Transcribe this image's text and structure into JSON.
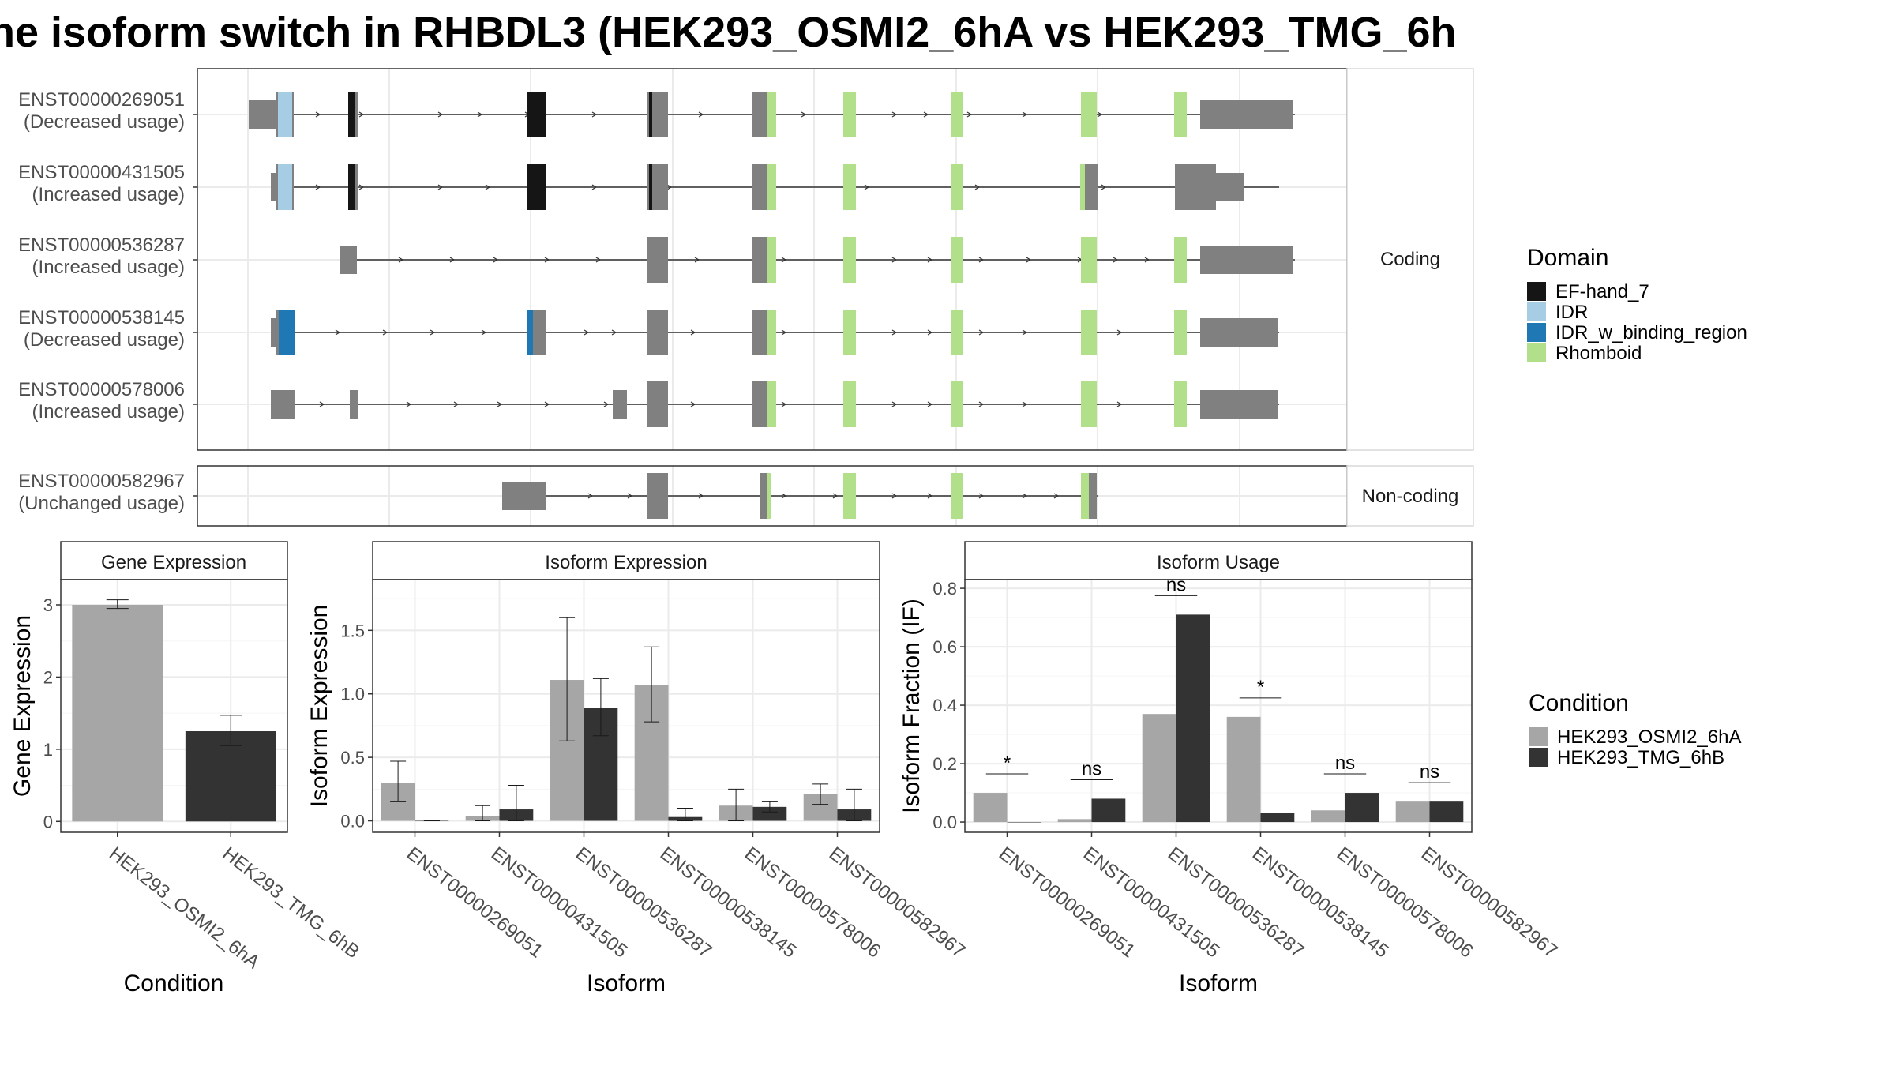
{
  "title": "ne isoform switch in RHBDL3 (HEK293_OSMI2_6hA vs HEK293_TMG_6h",
  "colors": {
    "ef_hand": "#151515",
    "idr": "#a6cde4",
    "idr_binding": "#1f77b4",
    "rhomboid": "#b2df8a",
    "exon": "#808080",
    "cond_a": "#a6a6a6",
    "cond_b": "#333333"
  },
  "gene_structure": {
    "coding_label": "Coding",
    "noncoding_label": "Non-coding",
    "transcripts": [
      {
        "id": "ENST00000269051",
        "usage": "(Decreased usage)",
        "group": "coding"
      },
      {
        "id": "ENST00000431505",
        "usage": "(Increased usage)",
        "group": "coding"
      },
      {
        "id": "ENST00000536287",
        "usage": "(Increased usage)",
        "group": "coding"
      },
      {
        "id": "ENST00000538145",
        "usage": "(Decreased usage)",
        "group": "coding"
      },
      {
        "id": "ENST00000578006",
        "usage": "(Increased usage)",
        "group": "coding"
      },
      {
        "id": "ENST00000582967",
        "usage": "(Unchanged usage)",
        "group": "noncoding"
      }
    ]
  },
  "legend_domain": {
    "title": "Domain",
    "items": [
      "EF-hand_7",
      "IDR",
      "IDR_w_binding_region",
      "Rhomboid"
    ]
  },
  "legend_condition": {
    "title": "Condition",
    "items": [
      "HEK293_OSMI2_6hA",
      "HEK293_TMG_6hB"
    ]
  },
  "chart_data": [
    {
      "type": "bar",
      "title": "Gene Expression",
      "xlabel": "Condition",
      "ylabel": "Gene Expression",
      "categories": [
        "HEK293_OSMI2_6hA",
        "HEK293_TMG_6hB"
      ],
      "values": [
        3.0,
        1.25
      ],
      "err_low": [
        2.95,
        1.05
      ],
      "err_high": [
        3.07,
        1.47
      ],
      "ylim": [
        -0.15,
        3.35
      ],
      "yticks": [
        0,
        1,
        2,
        3
      ]
    },
    {
      "type": "bar",
      "title": "Isoform Expression",
      "xlabel": "Isoform",
      "ylabel": "Isoform Expression",
      "categories": [
        "ENST00000269051",
        "ENST00000431505",
        "ENST00000536287",
        "ENST00000538145",
        "ENST00000578006",
        "ENST00000582967"
      ],
      "series": [
        {
          "name": "HEK293_OSMI2_6hA",
          "values": [
            0.3,
            0.04,
            1.11,
            1.07,
            0.12,
            0.21
          ],
          "err_low": [
            0.15,
            0.0,
            0.63,
            0.78,
            0.0,
            0.13
          ],
          "err_high": [
            0.47,
            0.12,
            1.6,
            1.37,
            0.25,
            0.29
          ]
        },
        {
          "name": "HEK293_TMG_6hB",
          "values": [
            0.0,
            0.09,
            0.89,
            0.03,
            0.11,
            0.09
          ],
          "err_low": [
            0.0,
            0.0,
            0.67,
            0.0,
            0.07,
            0.0
          ],
          "err_high": [
            0.0,
            0.28,
            1.12,
            0.1,
            0.15,
            0.25
          ]
        }
      ],
      "ylim": [
        -0.09,
        1.9
      ],
      "yticks": [
        0.0,
        0.5,
        1.0,
        1.5
      ]
    },
    {
      "type": "bar",
      "title": "Isoform Usage",
      "xlabel": "Isoform",
      "ylabel": "Isoform Fraction (IF)",
      "categories": [
        "ENST00000269051",
        "ENST00000431505",
        "ENST00000536287",
        "ENST00000538145",
        "ENST00000578006",
        "ENST00000582967"
      ],
      "series": [
        {
          "name": "HEK293_OSMI2_6hA",
          "values": [
            0.1,
            0.01,
            0.37,
            0.36,
            0.04,
            0.07
          ]
        },
        {
          "name": "HEK293_TMG_6hB",
          "values": [
            0.0,
            0.08,
            0.71,
            0.03,
            0.1,
            0.07
          ]
        }
      ],
      "significance": [
        "*",
        "ns",
        "ns",
        "*",
        "ns",
        "ns"
      ],
      "ylim": [
        -0.035,
        0.83
      ],
      "yticks": [
        0.0,
        0.2,
        0.4,
        0.6,
        0.8
      ]
    }
  ]
}
